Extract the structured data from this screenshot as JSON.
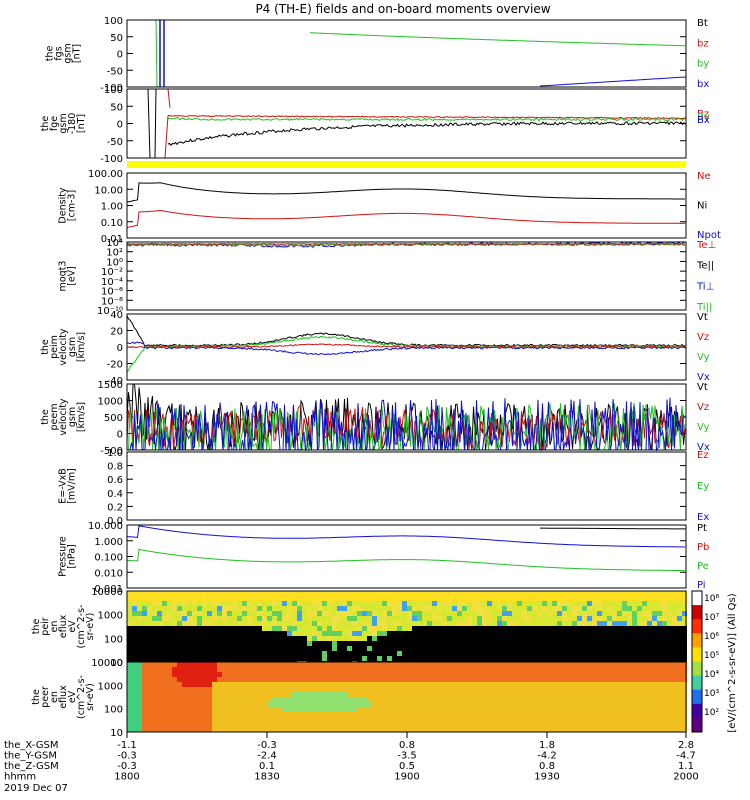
{
  "title": "P4 (TH-E) fields and on-board moments overview",
  "colors": {
    "black": "#000000",
    "red": "#d01010",
    "green": "#20c020",
    "blue": "#1010d0",
    "yellow": "#ffff00"
  },
  "chart_data": [
    {
      "type": "line",
      "ylabel": [
        "the",
        "fgs",
        "gsm",
        "[nT]"
      ],
      "yticks": [
        "100",
        "50",
        "0",
        "-50",
        "-100"
      ],
      "ylim": [
        -100,
        100
      ],
      "legend": [
        {
          "name": "Bt",
          "color": "black"
        },
        {
          "name": "bz",
          "color": "red"
        },
        {
          "name": "by",
          "color": "green"
        },
        {
          "name": "bx",
          "color": "blue"
        }
      ]
    },
    {
      "type": "line",
      "ylabel": [
        "the",
        "fge",
        "gsm",
        "-180",
        "[nT]"
      ],
      "yticks": [
        "100",
        "50",
        "0",
        "-50",
        "-100"
      ],
      "ylim": [
        -120,
        100
      ],
      "legend": [
        {
          "name": "Bz",
          "color": "red"
        },
        {
          "name": "By",
          "color": "green"
        },
        {
          "name": "Bx",
          "color": "blue"
        }
      ]
    },
    {
      "type": "line",
      "ylabel": [
        "Density",
        "[cm-3]"
      ],
      "yticks": [
        "100.00",
        "10.00",
        "1.00",
        "0.10",
        "0.01"
      ],
      "yscale": "log",
      "legend": [
        {
          "name": "Ne",
          "color": "red"
        },
        {
          "name": "Ni",
          "color": "black"
        },
        {
          "name": "Npot",
          "color": "blue"
        }
      ]
    },
    {
      "type": "line",
      "ylabel": [
        "moqt3",
        "[eV]"
      ],
      "yticks": [
        "10⁴",
        "10²",
        "10⁰",
        "10⁻²",
        "10⁻⁴",
        "10⁻⁶",
        "10⁻⁸",
        "10⁻¹⁰"
      ],
      "yscale": "log",
      "legend": [
        {
          "name": "Te⊥",
          "color": "red"
        },
        {
          "name": "Te||",
          "color": "black"
        },
        {
          "name": "Ti⊥",
          "color": "blue"
        },
        {
          "name": "Ti||",
          "color": "green"
        }
      ]
    },
    {
      "type": "line",
      "ylabel": [
        "the",
        "peim",
        "velocity",
        "gsm",
        "[km/s]"
      ],
      "yticks": [
        "40",
        "20",
        "0",
        "-20",
        "-40"
      ],
      "ylim": [
        -40,
        40
      ],
      "legend": [
        {
          "name": "Vt",
          "color": "black"
        },
        {
          "name": "Vz",
          "color": "red"
        },
        {
          "name": "Vy",
          "color": "green"
        },
        {
          "name": "Vx",
          "color": "blue"
        }
      ]
    },
    {
      "type": "line",
      "ylabel": [
        "the",
        "peem",
        "velocity",
        "gsm",
        "[km/s]"
      ],
      "yticks": [
        "1500",
        "1000",
        "500",
        "0",
        "-500"
      ],
      "ylim": [
        -500,
        1500
      ],
      "legend": [
        {
          "name": "Vt",
          "color": "black"
        },
        {
          "name": "Vz",
          "color": "red"
        },
        {
          "name": "Vy",
          "color": "green"
        },
        {
          "name": "Vx",
          "color": "blue"
        }
      ]
    },
    {
      "type": "line",
      "ylabel": [
        "E=-VxB",
        "[mV/m]"
      ],
      "yticks": [
        "1.0",
        "0.8",
        "0.6",
        "0.4",
        "0.2",
        "0.0"
      ],
      "ylim": [
        0,
        1
      ],
      "legend": [
        {
          "name": "Ez",
          "color": "red"
        },
        {
          "name": "Ey",
          "color": "green"
        },
        {
          "name": "Ex",
          "color": "blue"
        }
      ]
    },
    {
      "type": "line",
      "ylabel": [
        "Pressure",
        "[nPa]"
      ],
      "yticks": [
        "10.000",
        "1.000",
        "0.100",
        "0.010",
        "0.001"
      ],
      "yscale": "log",
      "legend": [
        {
          "name": "Pt",
          "color": "black"
        },
        {
          "name": "Pb",
          "color": "red"
        },
        {
          "name": "Pe",
          "color": "green"
        },
        {
          "name": "Pi",
          "color": "blue"
        }
      ]
    },
    {
      "type": "heatmap",
      "ylabel": [
        "the",
        "peir",
        "en",
        "eflux",
        "eV",
        "(cm^2-s-",
        "sr-eV)"
      ],
      "yticks": [
        "10000",
        "1000",
        "100",
        "10"
      ],
      "yscale": "log"
    },
    {
      "type": "heatmap",
      "ylabel": [
        "the",
        "peer",
        "en",
        "eflux",
        "eV",
        "(cm^2-s-",
        "sr-eV)"
      ],
      "yticks": [
        "10000",
        "1000",
        "100",
        "10"
      ],
      "yscale": "log"
    }
  ],
  "colorbar": {
    "ticks": [
      "10⁸",
      "10⁷",
      "10⁶",
      "10⁵",
      "10⁴",
      "10³",
      "10²"
    ],
    "label": "[eV/(cm^2-s-sr-eV)] (All Qs)"
  },
  "xaxis": {
    "rows": [
      {
        "label": "the_X-GSM",
        "values": [
          "-1.1",
          "-0.3",
          "0.8",
          "1.8",
          "2.8"
        ]
      },
      {
        "label": "the_Y-GSM",
        "values": [
          "-0.3",
          "-2.4",
          "-3.5",
          "-4.2",
          "-4.7"
        ]
      },
      {
        "label": "the_Z-GSM",
        "values": [
          "-0.3",
          "0.1",
          "0.5",
          "0.8",
          "1.1"
        ]
      },
      {
        "label": "hhmm",
        "values": [
          "1800",
          "1830",
          "1900",
          "1930",
          "2000"
        ]
      }
    ],
    "date": "2019 Dec 07"
  }
}
